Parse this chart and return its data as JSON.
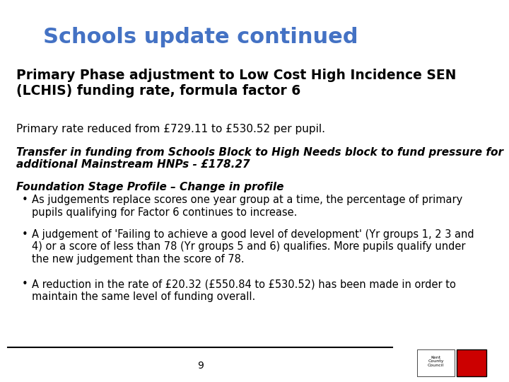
{
  "title": "Schools update continued",
  "title_color": "#4472C4",
  "title_fontsize": 22,
  "bg_color": "#FFFFFF",
  "heading": "Primary Phase adjustment to Low Cost High Incidence SEN\n(LCHIS) funding rate, formula factor 6",
  "heading_fontsize": 13.5,
  "subtext1": "Primary rate reduced from £729.11 to £530.52 per pupil.",
  "subtext1_fontsize": 11,
  "italic_block": "Transfer in funding from Schools Block to High Needs block to fund pressure for\nadditional Mainstream HNPs - £178.27",
  "italic_block_fontsize": 11,
  "profile_heading": "Foundation Stage Profile – Change in profile",
  "profile_heading_fontsize": 11,
  "bullet1": "As judgements replace scores one year group at a time, the percentage of primary\npupils qualifying for Factor 6 continues to increase.",
  "bullet2": "A judgement of 'Failing to achieve a good level of development' (Yr groups 1, 2 3 and\n4) or a score of less than 78 (Yr groups 5 and 6) qualifies. More pupils qualify under\nthe new judgement than the score of 78.",
  "bullet3": "A reduction in the rate of £20.32 (£550.84 to £530.52) has been made in order to\nmaintain the same level of funding overall.",
  "bullet_fontsize": 10.5,
  "page_number": "9",
  "footer_line_color": "#000000",
  "text_color": "#000000"
}
